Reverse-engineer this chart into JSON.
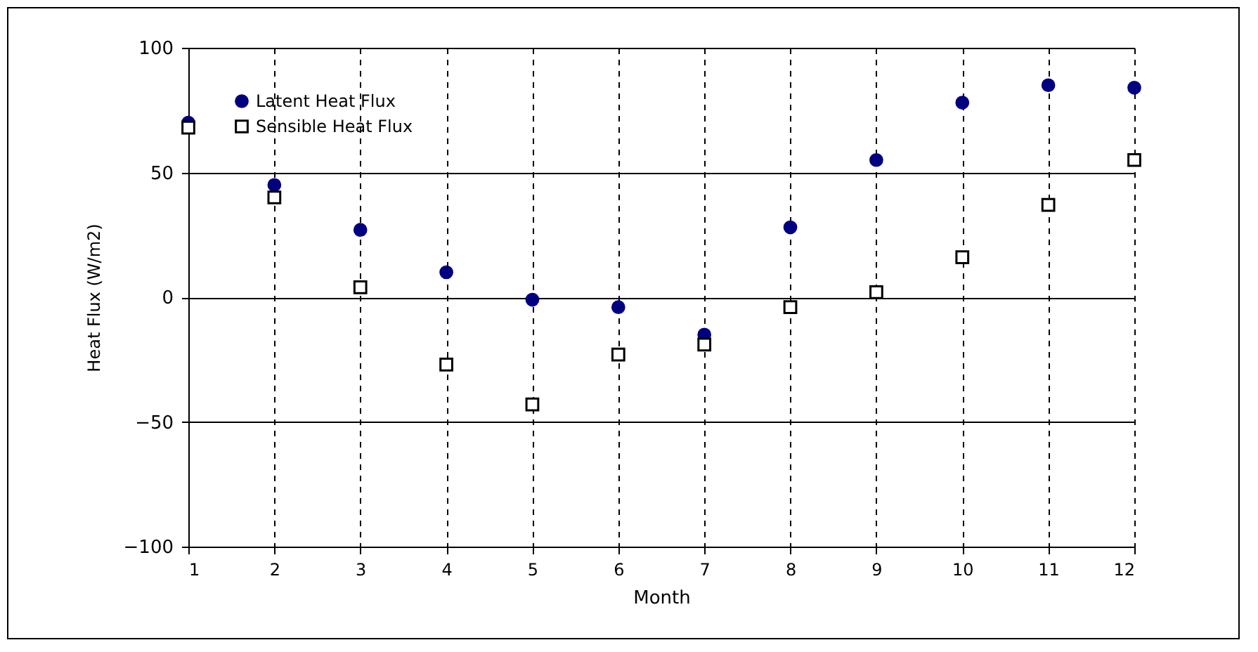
{
  "chart_data": {
    "type": "scatter",
    "xlabel": "Month",
    "ylabel": "Heat Flux (W/m2)",
    "x": [
      1,
      2,
      3,
      4,
      5,
      6,
      7,
      8,
      9,
      10,
      11,
      12
    ],
    "series": [
      {
        "name": "Latent Heat Flux",
        "color": "#000080",
        "marker": "circle",
        "values": [
          70,
          45,
          27,
          10,
          -1,
          -4,
          -15,
          28,
          55,
          78,
          85,
          84
        ]
      },
      {
        "name": "Sensible Heat Flux",
        "color": "#000000",
        "marker": "square",
        "values": [
          68,
          40,
          4,
          -27,
          -43,
          -23,
          -19,
          -4,
          2,
          16,
          37,
          55
        ]
      }
    ],
    "xlim": [
      1,
      12
    ],
    "xticks": [
      1,
      2,
      3,
      4,
      5,
      6,
      7,
      8,
      9,
      10,
      11,
      12
    ],
    "ylim": [
      -100,
      100
    ],
    "yticks": [
      -100,
      -50,
      0,
      50,
      100
    ],
    "grid": true,
    "legend": "top left"
  }
}
